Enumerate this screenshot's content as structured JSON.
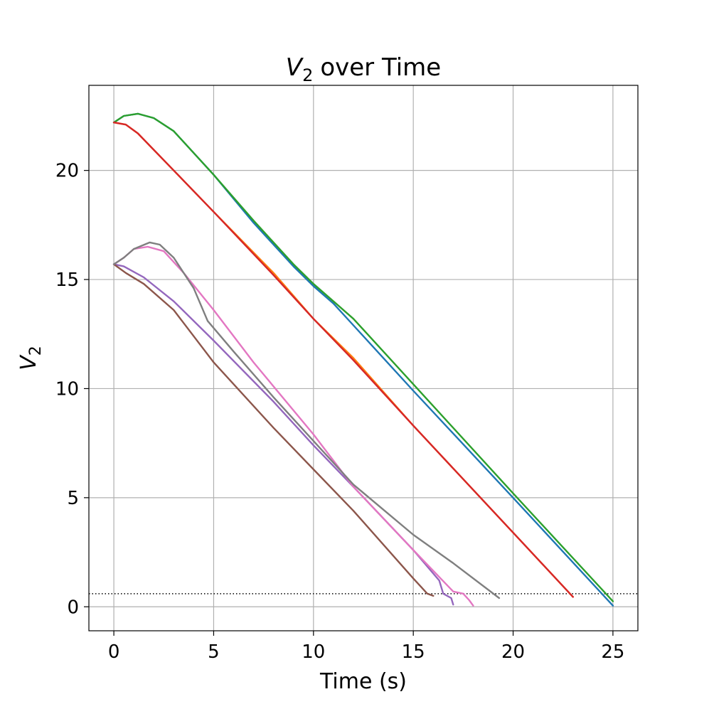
{
  "chart_data": {
    "type": "line",
    "title": "over Time",
    "title_math": {
      "symbol": "V",
      "subscript": "2"
    },
    "xlabel": "Time (s)",
    "ylabel_math": {
      "symbol": "V",
      "subscript": "2"
    },
    "xlim": [
      -1.25,
      26.25
    ],
    "ylim": [
      -1.1,
      23.9
    ],
    "xticks": [
      0,
      5,
      10,
      15,
      20,
      25
    ],
    "yticks": [
      0,
      5,
      10,
      15,
      20
    ],
    "grid": true,
    "threshold": {
      "y": 0.6,
      "style": "dotted",
      "color": "#000000"
    },
    "series": [
      {
        "color": "#1f77b4",
        "points": [
          [
            0,
            22.2
          ],
          [
            0.5,
            22.5
          ],
          [
            1.2,
            22.6
          ],
          [
            2,
            22.4
          ],
          [
            3,
            21.8
          ],
          [
            5,
            19.8
          ],
          [
            7,
            17.6
          ],
          [
            9,
            15.6
          ],
          [
            10,
            14.7
          ],
          [
            11,
            13.9
          ],
          [
            12,
            12.9
          ],
          [
            15,
            9.9
          ],
          [
            20,
            5.0
          ],
          [
            25,
            0.05
          ]
        ]
      },
      {
        "color": "#ff7f0e",
        "points": [
          [
            0,
            22.2
          ],
          [
            0.6,
            22.1
          ],
          [
            1.2,
            21.7
          ],
          [
            3,
            20.0
          ],
          [
            5,
            18.1
          ],
          [
            8,
            15.3
          ],
          [
            10,
            13.2
          ],
          [
            12,
            11.4
          ],
          [
            15,
            8.3
          ],
          [
            20,
            3.4
          ],
          [
            23,
            0.45
          ]
        ]
      },
      {
        "color": "#2ca02c",
        "points": [
          [
            0,
            22.2
          ],
          [
            0.5,
            22.5
          ],
          [
            1.2,
            22.6
          ],
          [
            2,
            22.4
          ],
          [
            3,
            21.8
          ],
          [
            5,
            19.8
          ],
          [
            7,
            17.7
          ],
          [
            9,
            15.7
          ],
          [
            10,
            14.8
          ],
          [
            11,
            14.0
          ],
          [
            12,
            13.2
          ],
          [
            15,
            10.2
          ],
          [
            20,
            5.2
          ],
          [
            25,
            0.25
          ]
        ]
      },
      {
        "color": "#d62728",
        "points": [
          [
            0,
            22.2
          ],
          [
            0.6,
            22.1
          ],
          [
            1.2,
            21.7
          ],
          [
            3,
            20.0
          ],
          [
            5,
            18.1
          ],
          [
            8,
            15.2
          ],
          [
            10,
            13.2
          ],
          [
            12,
            11.3
          ],
          [
            15,
            8.3
          ],
          [
            20,
            3.4
          ],
          [
            23,
            0.45
          ]
        ]
      },
      {
        "color": "#9467bd",
        "points": [
          [
            0,
            15.7
          ],
          [
            0.5,
            15.6
          ],
          [
            1.5,
            15.1
          ],
          [
            3,
            14.0
          ],
          [
            5,
            12.2
          ],
          [
            8,
            9.4
          ],
          [
            10,
            7.4
          ],
          [
            12,
            5.5
          ],
          [
            15,
            2.6
          ],
          [
            16.3,
            1.2
          ],
          [
            16.5,
            0.6
          ],
          [
            16.9,
            0.4
          ],
          [
            17,
            0.1
          ]
        ]
      },
      {
        "color": "#8c564b",
        "points": [
          [
            0,
            15.7
          ],
          [
            0.6,
            15.3
          ],
          [
            1.5,
            14.8
          ],
          [
            3,
            13.6
          ],
          [
            5,
            11.2
          ],
          [
            8,
            8.2
          ],
          [
            10,
            6.3
          ],
          [
            12,
            4.4
          ],
          [
            15,
            1.3
          ],
          [
            15.4,
            0.9
          ],
          [
            15.7,
            0.6
          ],
          [
            16,
            0.5
          ]
        ]
      },
      {
        "color": "#e377c2",
        "points": [
          [
            0,
            15.7
          ],
          [
            0.5,
            16.0
          ],
          [
            1,
            16.4
          ],
          [
            1.7,
            16.5
          ],
          [
            2.5,
            16.3
          ],
          [
            3.5,
            15.3
          ],
          [
            5,
            13.6
          ],
          [
            7,
            11.2
          ],
          [
            10,
            7.9
          ],
          [
            12,
            5.5
          ],
          [
            15,
            2.6
          ],
          [
            17,
            0.7
          ],
          [
            17.5,
            0.6
          ],
          [
            17.8,
            0.3
          ],
          [
            18,
            0.05
          ]
        ]
      },
      {
        "color": "#7f7f7f",
        "points": [
          [
            0,
            15.7
          ],
          [
            0.5,
            16.0
          ],
          [
            1,
            16.4
          ],
          [
            1.8,
            16.7
          ],
          [
            2.3,
            16.6
          ],
          [
            3,
            16.0
          ],
          [
            4,
            14.6
          ],
          [
            4.7,
            13.1
          ],
          [
            6,
            11.7
          ],
          [
            8,
            9.6
          ],
          [
            10,
            7.6
          ],
          [
            12,
            5.6
          ],
          [
            15,
            3.3
          ],
          [
            17,
            2.0
          ],
          [
            19.3,
            0.4
          ]
        ]
      }
    ]
  }
}
